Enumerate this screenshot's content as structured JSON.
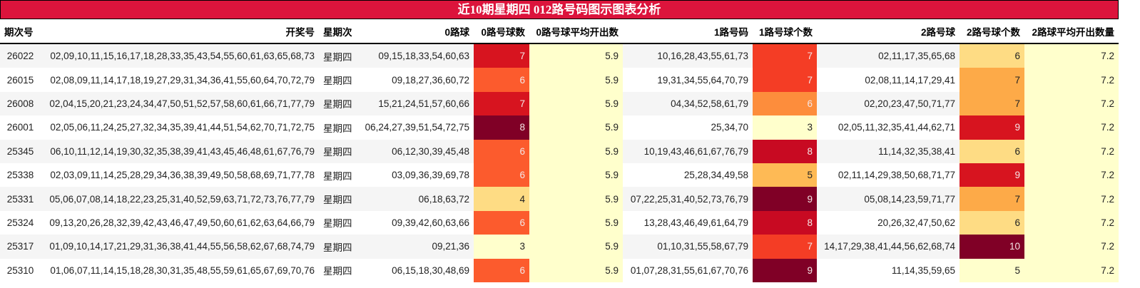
{
  "title": "近10期星期四 012路号码图示图表分析",
  "headers": [
    "期次号",
    "开奖号",
    "星期次",
    "0路球",
    "0路号球数",
    "0路号球平均开出数",
    "1路号码",
    "1路号球个数",
    "2路号球",
    "2路号球个数",
    "2路球平均开出数量"
  ],
  "rows": [
    {
      "issue": "26022",
      "numbers": "02,09,10,11,15,16,17,18,28,33,35,43,54,55,60,61,63,65,68,73",
      "weekday": "星期四",
      "r0": "09,15,18,33,54,60,63",
      "c0": 7,
      "c0_color": "#d7141f",
      "avg0": "5.9",
      "r1": "10,16,28,43,55,61,73",
      "c1": 7,
      "c1_color": "#f43d25",
      "r2": "02,11,17,35,65,68",
      "c2": 6,
      "c2_color": "#fedc84",
      "avg2": "7.2"
    },
    {
      "issue": "26015",
      "numbers": "02,08,09,11,14,17,18,19,27,29,31,34,36,41,55,60,64,70,72,79",
      "weekday": "星期四",
      "r0": "09,18,27,36,60,72",
      "c0": 6,
      "c0_color": "#fc5b2d",
      "avg0": "5.9",
      "r1": "19,31,34,55,64,70,79",
      "c1": 7,
      "c1_color": "#f43d25",
      "r2": "02,08,11,14,17,29,41",
      "c2": 7,
      "c2_color": "#fdaa48",
      "avg2": "7.2"
    },
    {
      "issue": "26008",
      "numbers": "02,04,15,20,21,23,24,34,47,50,51,52,57,58,60,61,66,71,77,79",
      "weekday": "星期四",
      "r0": "15,21,24,51,57,60,66",
      "c0": 7,
      "c0_color": "#d7141f",
      "avg0": "5.9",
      "r1": "04,34,52,58,61,79",
      "c1": 6,
      "c1_color": "#fd8d3c",
      "r2": "02,20,23,47,50,71,77",
      "c2": 7,
      "c2_color": "#fdaa48",
      "avg2": "7.2"
    },
    {
      "issue": "26001",
      "numbers": "02,05,06,11,24,25,27,32,34,35,39,41,44,51,54,62,70,71,72,75",
      "weekday": "星期四",
      "r0": "06,24,27,39,51,54,72,75",
      "c0": 8,
      "c0_color": "#800026",
      "avg0": "5.9",
      "r1": "25,34,70",
      "c1": 3,
      "c1_color": "#ffffcc",
      "r2": "02,05,11,32,35,41,44,62,71",
      "c2": 9,
      "c2_color": "#d7141f",
      "avg2": "7.2"
    },
    {
      "issue": "25345",
      "numbers": "06,10,11,12,14,19,30,32,35,38,39,41,43,45,46,48,61,67,76,79",
      "weekday": "星期四",
      "r0": "06,12,30,39,45,48",
      "c0": 6,
      "c0_color": "#fc5b2d",
      "avg0": "5.9",
      "r1": "10,19,43,46,61,67,76,79",
      "c1": 8,
      "c1_color": "#c80a22",
      "r2": "11,14,32,35,38,41",
      "c2": 6,
      "c2_color": "#fedc84",
      "avg2": "7.2"
    },
    {
      "issue": "25338",
      "numbers": "02,03,09,11,14,25,28,29,34,36,38,39,49,50,58,68,69,71,77,78",
      "weekday": "星期四",
      "r0": "03,09,36,39,69,78",
      "c0": 6,
      "c0_color": "#fc5b2d",
      "avg0": "5.9",
      "r1": "25,28,34,49,58",
      "c1": 5,
      "c1_color": "#feba55",
      "r2": "02,11,14,29,38,50,68,71,77",
      "c2": 9,
      "c2_color": "#d7141f",
      "avg2": "7.2"
    },
    {
      "issue": "25331",
      "numbers": "05,06,07,08,14,18,22,23,25,31,40,52,59,63,71,72,73,76,77,79",
      "weekday": "星期四",
      "r0": "06,18,63,72",
      "c0": 4,
      "c0_color": "#fedc84",
      "avg0": "5.9",
      "r1": "07,22,25,31,40,52,73,76,79",
      "c1": 9,
      "c1_color": "#800026",
      "r2": "05,08,14,23,59,71,77",
      "c2": 7,
      "c2_color": "#fdaa48",
      "avg2": "7.2"
    },
    {
      "issue": "25324",
      "numbers": "09,13,20,26,28,32,39,42,43,46,47,49,50,60,61,62,63,64,66,79",
      "weekday": "星期四",
      "r0": "09,39,42,60,63,66",
      "c0": 6,
      "c0_color": "#fc5b2d",
      "avg0": "5.9",
      "r1": "13,28,43,46,49,61,64,79",
      "c1": 8,
      "c1_color": "#c80a22",
      "r2": "20,26,32,47,50,62",
      "c2": 6,
      "c2_color": "#fedc84",
      "avg2": "7.2"
    },
    {
      "issue": "25317",
      "numbers": "01,09,10,14,17,21,29,31,36,38,41,44,55,56,58,62,67,68,74,79",
      "weekday": "星期四",
      "r0": "09,21,36",
      "c0": 3,
      "c0_color": "#ffffcc",
      "avg0": "5.9",
      "r1": "01,10,31,55,58,67,79",
      "c1": 7,
      "c1_color": "#f43d25",
      "r2": "14,17,29,38,41,44,56,62,68,74",
      "c2": 10,
      "c2_color": "#800026",
      "avg2": "7.2"
    },
    {
      "issue": "25310",
      "numbers": "01,06,07,11,14,15,18,28,30,31,35,48,55,59,61,65,67,69,70,76",
      "weekday": "星期四",
      "r0": "06,15,18,30,48,69",
      "c0": 6,
      "c0_color": "#fc5b2d",
      "avg0": "5.9",
      "r1": "01,07,28,31,55,61,67,70,76",
      "c1": 9,
      "c1_color": "#800026",
      "r2": "11,14,35,59,65",
      "c2": 5,
      "c2_color": "#ffffcc",
      "avg2": "7.2"
    }
  ]
}
